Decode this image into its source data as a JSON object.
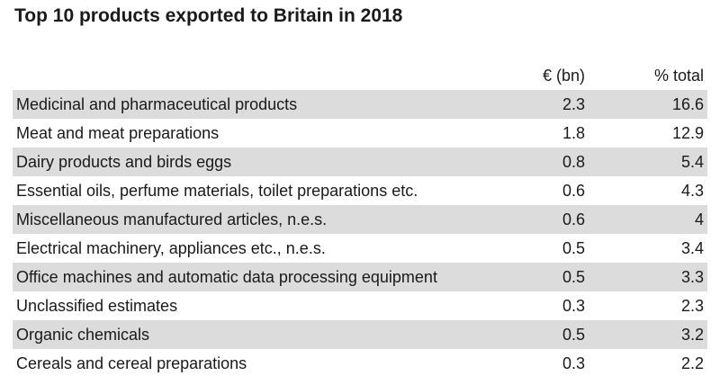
{
  "chart_data": {
    "type": "table",
    "title": "Top 10 products exported to Britain in 2018",
    "columns": [
      "",
      "€ (bn)",
      "% total"
    ],
    "rows": [
      {
        "product": "Medicinal and pharmaceutical products",
        "value_bn": "2.3",
        "pct_total": "16.6"
      },
      {
        "product": "Meat and meat preparations",
        "value_bn": "1.8",
        "pct_total": "12.9"
      },
      {
        "product": "Dairy products and birds eggs",
        "value_bn": "0.8",
        "pct_total": "5.4"
      },
      {
        "product": "Essential oils, perfume materials, toilet preparations etc.",
        "value_bn": "0.6",
        "pct_total": "4.3"
      },
      {
        "product": "Miscellaneous manufactured articles, n.e.s.",
        "value_bn": "0.6",
        "pct_total": "4"
      },
      {
        "product": "Electrical machinery, appliances etc., n.e.s.",
        "value_bn": "0.5",
        "pct_total": "3.4"
      },
      {
        "product": "Office machines and automatic data processing equipment",
        "value_bn": "0.5",
        "pct_total": "3.3"
      },
      {
        "product": "Unclassified estimates",
        "value_bn": "0.3",
        "pct_total": "2.3"
      },
      {
        "product": "Organic chemicals",
        "value_bn": "0.5",
        "pct_total": "3.2"
      },
      {
        "product": "Cereals and cereal preparations",
        "value_bn": "0.3",
        "pct_total": "2.2"
      }
    ]
  },
  "colors": {
    "stripe": "#dcdcdc",
    "text": "#1a1a1a",
    "background": "#ffffff"
  }
}
